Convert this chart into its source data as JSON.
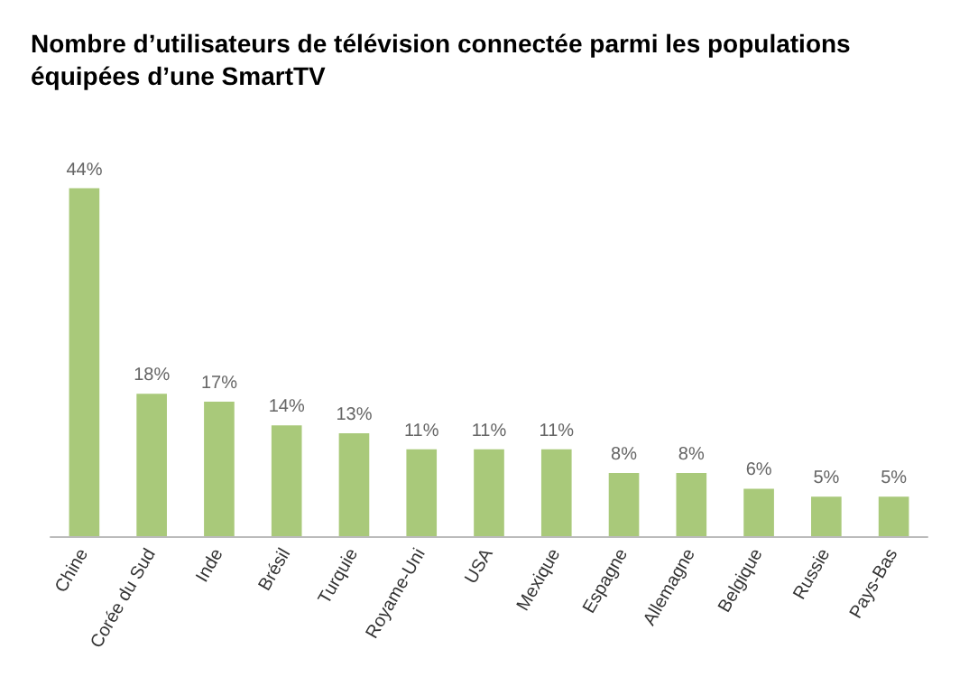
{
  "chart_data": {
    "type": "bar",
    "title": "Nombre d’utilisateurs de télévision connectée parmi les populations équipées d’une SmartTV",
    "categories": [
      "Chine",
      "Corée du Sud",
      "Inde",
      "Brésil",
      "Turquie",
      "Royame-Uni",
      "USA",
      "Mexique",
      "Espagne",
      "Allemagne",
      "Belgique",
      "Russie",
      "Pays-Bas"
    ],
    "values": [
      44,
      18,
      17,
      14,
      13,
      11,
      11,
      11,
      8,
      8,
      6,
      5,
      5
    ],
    "value_labels": [
      "44%",
      "18%",
      "17%",
      "14%",
      "13%",
      "11%",
      "11%",
      "11%",
      "8%",
      "8%",
      "6%",
      "5%",
      "5%"
    ],
    "color": "#a9c97a"
  }
}
